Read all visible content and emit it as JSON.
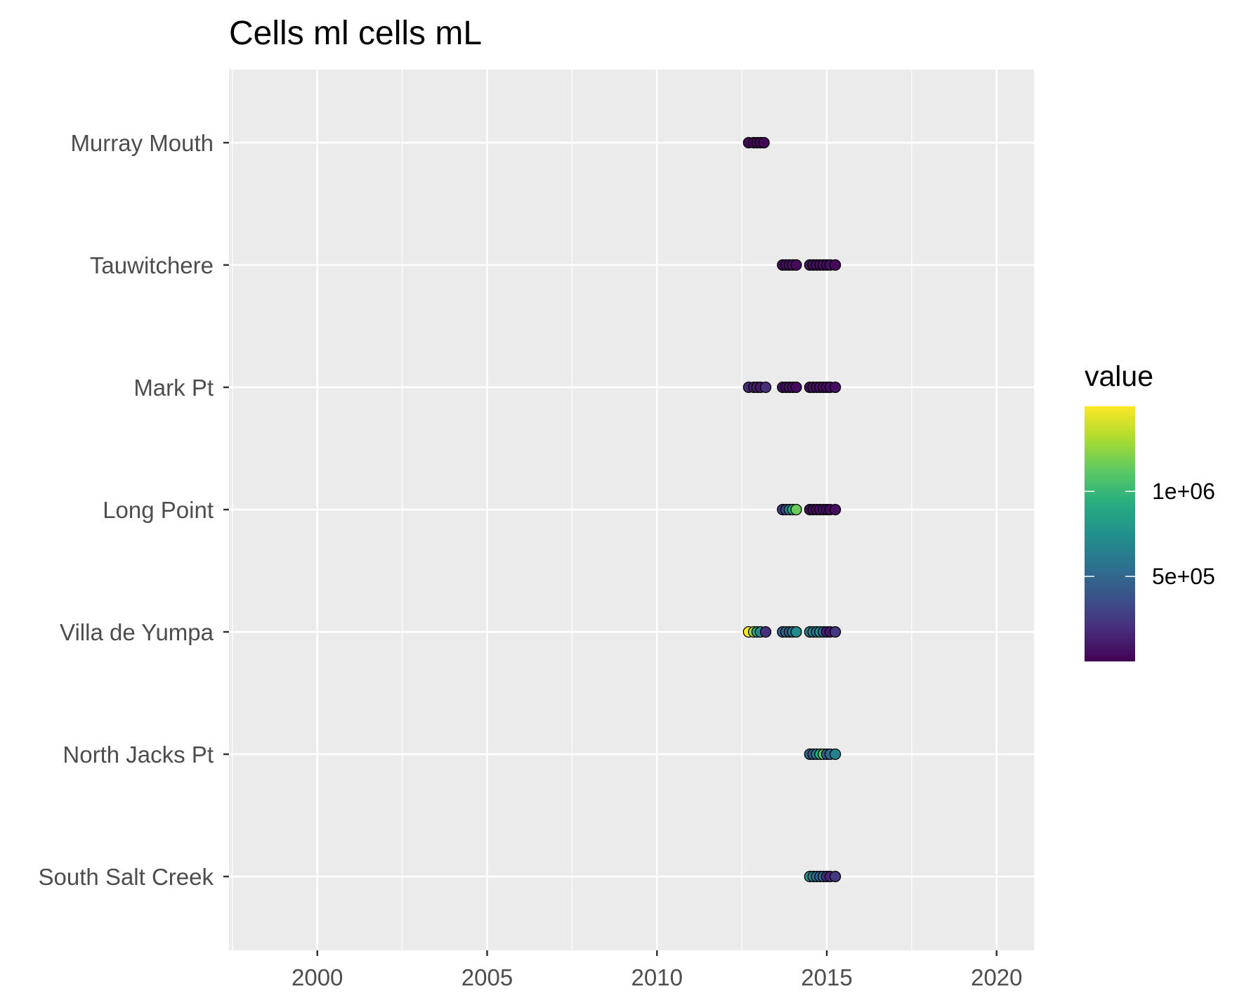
{
  "chart_data": {
    "type": "scatter",
    "title": "Cells  ml cells mL",
    "xlabel": "",
    "ylabel": "",
    "xlim": [
      1997.4,
      2021.1
    ],
    "x_ticks": [
      2000,
      2005,
      2010,
      2015,
      2020
    ],
    "categories": [
      "Murray Mouth",
      "Tauwitchere",
      "Mark Pt",
      "Long Point",
      "Villa de Yumpa",
      "North Jacks Pt",
      "South Salt Creek"
    ],
    "grid": true,
    "legend": {
      "title": "value",
      "position": "right",
      "colormap": "viridis",
      "range": [
        0,
        1500000
      ],
      "ticks": [
        {
          "value": 500000,
          "label": "5e+05"
        },
        {
          "value": 1000000,
          "label": "1e+06"
        }
      ]
    },
    "series": [
      {
        "category": "Murray Mouth",
        "points": [
          {
            "x": 2012.7,
            "value": 30000
          },
          {
            "x": 2012.85,
            "value": 20000
          },
          {
            "x": 2012.95,
            "value": 25000
          },
          {
            "x": 2013.05,
            "value": 15000
          },
          {
            "x": 2013.15,
            "value": 20000
          }
        ]
      },
      {
        "category": "Tauwitchere",
        "points": [
          {
            "x": 2013.7,
            "value": 40000
          },
          {
            "x": 2013.8,
            "value": 60000
          },
          {
            "x": 2013.9,
            "value": 50000
          },
          {
            "x": 2014.0,
            "value": 70000
          },
          {
            "x": 2014.1,
            "value": 40000
          },
          {
            "x": 2014.5,
            "value": 80000
          },
          {
            "x": 2014.6,
            "value": 60000
          },
          {
            "x": 2014.7,
            "value": 50000
          },
          {
            "x": 2014.8,
            "value": 40000
          },
          {
            "x": 2014.9,
            "value": 60000
          },
          {
            "x": 2015.0,
            "value": 30000
          },
          {
            "x": 2015.1,
            "value": 50000
          },
          {
            "x": 2015.25,
            "value": 40000
          }
        ]
      },
      {
        "category": "Mark Pt",
        "points": [
          {
            "x": 2012.7,
            "value": 180000
          },
          {
            "x": 2012.85,
            "value": 120000
          },
          {
            "x": 2012.95,
            "value": 150000
          },
          {
            "x": 2013.05,
            "value": 100000
          },
          {
            "x": 2013.2,
            "value": 200000
          },
          {
            "x": 2013.7,
            "value": 90000
          },
          {
            "x": 2013.8,
            "value": 60000
          },
          {
            "x": 2013.9,
            "value": 70000
          },
          {
            "x": 2014.0,
            "value": 50000
          },
          {
            "x": 2014.1,
            "value": 40000
          },
          {
            "x": 2014.5,
            "value": 60000
          },
          {
            "x": 2014.6,
            "value": 80000
          },
          {
            "x": 2014.7,
            "value": 50000
          },
          {
            "x": 2014.8,
            "value": 70000
          },
          {
            "x": 2014.9,
            "value": 40000
          },
          {
            "x": 2015.0,
            "value": 60000
          },
          {
            "x": 2015.1,
            "value": 50000
          },
          {
            "x": 2015.25,
            "value": 70000
          }
        ]
      },
      {
        "category": "Long Point",
        "points": [
          {
            "x": 2013.7,
            "value": 250000
          },
          {
            "x": 2013.8,
            "value": 350000
          },
          {
            "x": 2013.9,
            "value": 650000
          },
          {
            "x": 2014.0,
            "value": 900000
          },
          {
            "x": 2014.1,
            "value": 1150000
          },
          {
            "x": 2014.5,
            "value": 60000
          },
          {
            "x": 2014.6,
            "value": 50000
          },
          {
            "x": 2014.7,
            "value": 40000
          },
          {
            "x": 2014.8,
            "value": 70000
          },
          {
            "x": 2014.9,
            "value": 50000
          },
          {
            "x": 2015.0,
            "value": 30000
          },
          {
            "x": 2015.1,
            "value": 40000
          },
          {
            "x": 2015.25,
            "value": 60000
          }
        ]
      },
      {
        "category": "Villa de Yumpa",
        "points": [
          {
            "x": 2012.7,
            "value": 1500000
          },
          {
            "x": 2012.85,
            "value": 1300000
          },
          {
            "x": 2012.95,
            "value": 900000
          },
          {
            "x": 2013.05,
            "value": 700000
          },
          {
            "x": 2013.2,
            "value": 200000
          },
          {
            "x": 2013.7,
            "value": 450000
          },
          {
            "x": 2013.8,
            "value": 550000
          },
          {
            "x": 2013.9,
            "value": 400000
          },
          {
            "x": 2014.0,
            "value": 600000
          },
          {
            "x": 2014.1,
            "value": 700000
          },
          {
            "x": 2014.5,
            "value": 650000
          },
          {
            "x": 2014.6,
            "value": 700000
          },
          {
            "x": 2014.7,
            "value": 550000
          },
          {
            "x": 2014.8,
            "value": 750000
          },
          {
            "x": 2014.9,
            "value": 500000
          },
          {
            "x": 2015.0,
            "value": 150000
          },
          {
            "x": 2015.1,
            "value": 100000
          },
          {
            "x": 2015.25,
            "value": 250000
          }
        ]
      },
      {
        "category": "North Jacks Pt",
        "points": [
          {
            "x": 2014.5,
            "value": 500000
          },
          {
            "x": 2014.6,
            "value": 450000
          },
          {
            "x": 2014.7,
            "value": 600000
          },
          {
            "x": 2014.8,
            "value": 900000
          },
          {
            "x": 2014.9,
            "value": 1100000
          },
          {
            "x": 2015.0,
            "value": 450000
          },
          {
            "x": 2015.1,
            "value": 500000
          },
          {
            "x": 2015.25,
            "value": 650000
          }
        ]
      },
      {
        "category": "South Salt Creek",
        "points": [
          {
            "x": 2014.5,
            "value": 800000
          },
          {
            "x": 2014.6,
            "value": 650000
          },
          {
            "x": 2014.7,
            "value": 550000
          },
          {
            "x": 2014.8,
            "value": 450000
          },
          {
            "x": 2014.9,
            "value": 500000
          },
          {
            "x": 2015.0,
            "value": 200000
          },
          {
            "x": 2015.1,
            "value": 150000
          },
          {
            "x": 2015.25,
            "value": 250000
          }
        ]
      }
    ]
  }
}
